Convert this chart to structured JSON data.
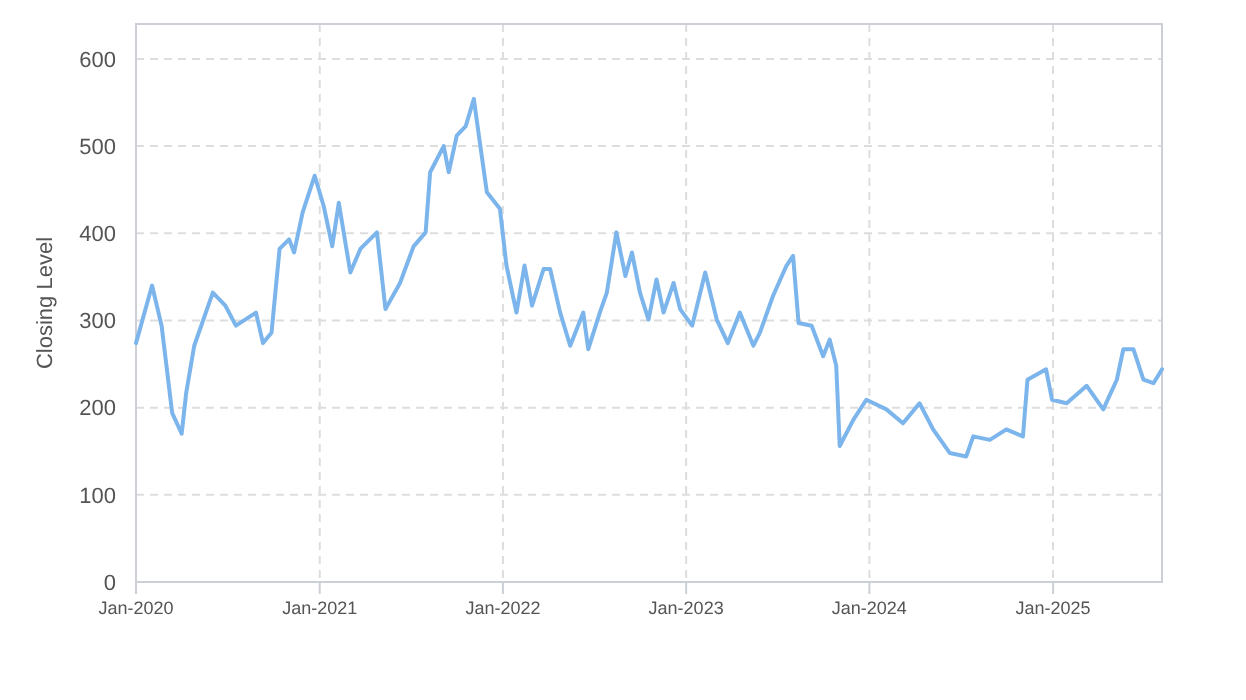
{
  "chart_data": {
    "type": "line",
    "ylabel": "Closing Level",
    "color": "#7cb5ec",
    "grid": true,
    "line_style": "solid",
    "marker": "none",
    "xlim": [
      "2020-01-01",
      "2025-08-06"
    ],
    "ylim": [
      0,
      640
    ],
    "xticks": [
      {
        "value": "2020-01-01",
        "label": "Jan-2020"
      },
      {
        "value": "2021-01-01",
        "label": "Jan-2021"
      },
      {
        "value": "2022-01-01",
        "label": "Jan-2022"
      },
      {
        "value": "2023-01-01",
        "label": "Jan-2023"
      },
      {
        "value": "2024-01-01",
        "label": "Jan-2024"
      },
      {
        "value": "2025-01-01",
        "label": "Jan-2025"
      }
    ],
    "yticks": [
      0,
      100,
      200,
      300,
      400,
      500,
      600
    ],
    "x": [
      "2020-01-01",
      "2020-02-02",
      "2020-02-21",
      "2020-03-13",
      "2020-04-01",
      "2020-04-10",
      "2020-04-26",
      "2020-06-02",
      "2020-06-27",
      "2020-07-18",
      "2020-08-27",
      "2020-09-10",
      "2020-09-27",
      "2020-10-13",
      "2020-11-01",
      "2020-11-11",
      "2020-11-28",
      "2020-12-22",
      "2021-01-09",
      "2021-01-26",
      "2021-02-08",
      "2021-03-03",
      "2021-03-23",
      "2021-04-25",
      "2021-05-12",
      "2021-06-10",
      "2021-07-07",
      "2021-07-31",
      "2021-08-09",
      "2021-09-05",
      "2021-09-15",
      "2021-10-01",
      "2021-10-19",
      "2021-11-04",
      "2021-11-17",
      "2021-11-30",
      "2021-12-26",
      "2022-01-08",
      "2022-01-28",
      "2022-02-13",
      "2022-02-28",
      "2022-03-23",
      "2022-04-05",
      "2022-04-25",
      "2022-05-15",
      "2022-06-10",
      "2022-06-20",
      "2022-07-13",
      "2022-07-27",
      "2022-08-15",
      "2022-09-02",
      "2022-09-15",
      "2022-10-01",
      "2022-10-18",
      "2022-11-03",
      "2022-11-17",
      "2022-12-07",
      "2022-12-20",
      "2023-01-13",
      "2023-02-08",
      "2023-03-03",
      "2023-03-25",
      "2023-04-18",
      "2023-05-15",
      "2023-05-28",
      "2023-06-23",
      "2023-07-20",
      "2023-08-02",
      "2023-08-13",
      "2023-09-08",
      "2023-10-01",
      "2023-10-14",
      "2023-10-27",
      "2023-11-03",
      "2023-11-30",
      "2023-12-26",
      "2024-02-04",
      "2024-03-08",
      "2024-04-10",
      "2024-05-07",
      "2024-06-09",
      "2024-07-12",
      "2024-07-26",
      "2024-08-28",
      "2024-09-30",
      "2024-11-02",
      "2024-11-11",
      "2024-12-18",
      "2024-12-30",
      "2025-01-28",
      "2025-03-09",
      "2025-04-11",
      "2025-05-08",
      "2025-05-21",
      "2025-06-10",
      "2025-06-30",
      "2025-07-20",
      "2025-08-06"
    ],
    "values": [
      274,
      340,
      294,
      194,
      170,
      217,
      271,
      332,
      317,
      294,
      309,
      274,
      286,
      382,
      393,
      378,
      424,
      466,
      431,
      385,
      435,
      355,
      382,
      401,
      313,
      343,
      385,
      401,
      470,
      500,
      470,
      512,
      523,
      554,
      500,
      447,
      428,
      363,
      309,
      363,
      317,
      359,
      359,
      309,
      271,
      309,
      267,
      309,
      332,
      401,
      351,
      378,
      332,
      301,
      347,
      309,
      343,
      313,
      294,
      355,
      301,
      274,
      309,
      271,
      286,
      328,
      363,
      374,
      297,
      294,
      259,
      278,
      248,
      156,
      186,
      209,
      198,
      182,
      205,
      175,
      148,
      144,
      167,
      163,
      175,
      167,
      232,
      244,
      209,
      205,
      225,
      198,
      232,
      267,
      267,
      232,
      228,
      244
    ]
  }
}
